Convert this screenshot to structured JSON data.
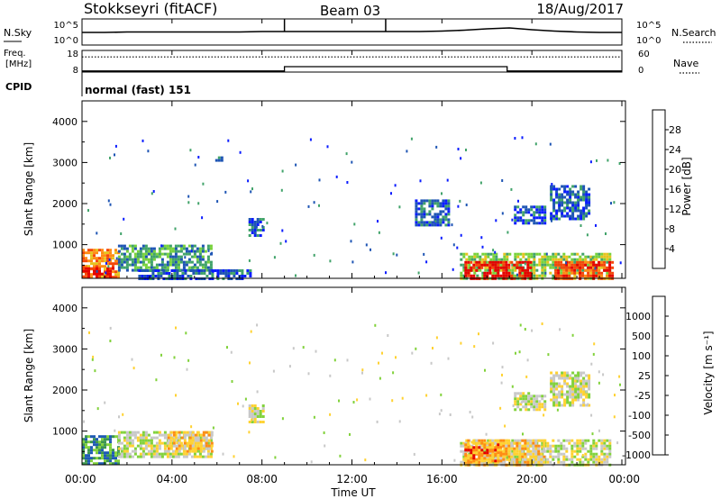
{
  "header": {
    "station": "Stokkseyri (fitACF)",
    "beam": "Beam 03",
    "date": "18/Aug/2017"
  },
  "chart_data": [
    {
      "type": "line",
      "panel": "nsky-nsearch",
      "left_label": "N.Sky",
      "right_label": "N.Search",
      "left_ticks": [
        "10^5",
        "10^0"
      ],
      "right_ticks": [
        "10^5",
        "10^0"
      ],
      "x_hours": [
        0,
        1,
        2,
        3,
        4,
        5,
        6,
        7,
        8,
        9,
        10,
        11,
        12,
        13,
        14,
        15,
        16,
        17,
        18,
        19,
        20,
        21,
        22,
        23,
        24
      ],
      "y_log10": [
        2.4,
        2.4,
        2.5,
        2.5,
        2.5,
        2.5,
        2.5,
        2.5,
        2.6,
        2.6,
        2.6,
        2.6,
        2.6,
        2.6,
        2.6,
        2.6,
        2.7,
        2.9,
        3.2,
        3.4,
        3.0,
        2.7,
        2.5,
        2.4,
        2.4
      ],
      "spikes_hours": [
        9.0,
        13.5
      ],
      "ylim": [
        0,
        5
      ]
    },
    {
      "type": "line",
      "panel": "freq-nave",
      "left_label_line1": "Freq.",
      "left_label_line2": "[MHz]",
      "right_label": "Nave",
      "left_ticks": [
        "18",
        "8"
      ],
      "right_ticks": [
        "60",
        "0"
      ],
      "nave_level": 42,
      "freq_steps": [
        {
          "from": 0,
          "to": 9.0,
          "mhz": 8.5
        },
        {
          "from": 9.0,
          "to": 18.9,
          "mhz": 10.5
        },
        {
          "from": 18.9,
          "to": 24,
          "mhz": 8.5
        }
      ],
      "ylim": [
        8,
        18
      ]
    },
    {
      "type": "heatmap",
      "panel": "power",
      "ylabel": "Slant Range [km]",
      "yticks": [
        "1000",
        "2000",
        "3000",
        "4000"
      ],
      "ylim": [
        180,
        4500
      ],
      "colorbar_label": "Power [dB]",
      "colorbar_ticks": [
        "4",
        "8",
        "12",
        "16",
        "20",
        "24",
        "28"
      ],
      "colors": [
        "#0a1cff",
        "#1e55b4",
        "#41a36a",
        "#78d23c",
        "#e6c31e",
        "#ff8c14",
        "#f5460a",
        "#e60000"
      ],
      "regions": [
        {
          "t0": 0.0,
          "t1": 1.6,
          "r0": 200,
          "r1": 900,
          "level": 5
        },
        {
          "t0": 0.0,
          "t1": 1.4,
          "r0": 200,
          "r1": 450,
          "level": 7
        },
        {
          "t0": 1.6,
          "t1": 5.8,
          "r0": 350,
          "r1": 1000,
          "level": 2
        },
        {
          "t0": 2.5,
          "t1": 7.5,
          "r0": 200,
          "r1": 400,
          "level": 1
        },
        {
          "t0": 7.4,
          "t1": 8.1,
          "r0": 1200,
          "r1": 1650,
          "level": 1
        },
        {
          "t0": 5.8,
          "t1": 6.2,
          "r0": 3050,
          "r1": 3150,
          "level": 1
        },
        {
          "t0": 14.8,
          "t1": 16.3,
          "r0": 1500,
          "r1": 2100,
          "level": 1
        },
        {
          "t0": 16.8,
          "t1": 23.5,
          "r0": 200,
          "r1": 800,
          "level": 3
        },
        {
          "t0": 17.0,
          "t1": 20.0,
          "r0": 200,
          "r1": 600,
          "level": 7
        },
        {
          "t0": 21.0,
          "t1": 23.6,
          "r0": 200,
          "r1": 600,
          "level": 6
        },
        {
          "t0": 19.2,
          "t1": 20.6,
          "r0": 1500,
          "r1": 1950,
          "level": 1
        },
        {
          "t0": 20.8,
          "t1": 22.6,
          "r0": 1600,
          "r1": 2450,
          "level": 1
        }
      ]
    },
    {
      "type": "heatmap",
      "panel": "velocity",
      "ylabel": "Slant Range [km]",
      "yticks": [
        "1000",
        "2000",
        "3000",
        "4000"
      ],
      "ylim": [
        180,
        4500
      ],
      "colorbar_label": "Velocity [m s⁻¹]",
      "colorbar_ticks": [
        "1000",
        "500",
        "100",
        "25",
        "-25",
        "-100",
        "-500",
        "-1000"
      ],
      "colors": [
        "#0a28d2",
        "#1e5ab4",
        "#3c9650",
        "#82d23c",
        "#c8c8c8",
        "#ffd232",
        "#ff8c14",
        "#e60000"
      ],
      "regions": [
        {
          "t0": 0.0,
          "t1": 1.6,
          "r0": 200,
          "r1": 900,
          "level": 2
        },
        {
          "t0": 1.6,
          "t1": 5.8,
          "r0": 350,
          "r1": 1000,
          "level": 4
        },
        {
          "t0": 3.8,
          "t1": 5.8,
          "r0": 500,
          "r1": 1000,
          "level": 5
        },
        {
          "t0": 7.4,
          "t1": 8.1,
          "r0": 1200,
          "r1": 1650,
          "level": 4
        },
        {
          "t0": 16.8,
          "t1": 23.5,
          "r0": 200,
          "r1": 800,
          "level": 4
        },
        {
          "t0": 17.0,
          "t1": 20.5,
          "r0": 200,
          "r1": 800,
          "level": 5
        },
        {
          "t0": 17.0,
          "t1": 18.6,
          "r0": 300,
          "r1": 700,
          "level": 6
        },
        {
          "t0": 19.2,
          "t1": 20.6,
          "r0": 1500,
          "r1": 1950,
          "level": 4
        },
        {
          "t0": 20.8,
          "t1": 22.6,
          "r0": 1600,
          "r1": 2450,
          "level": 4
        }
      ]
    }
  ],
  "cpid": {
    "label": "CPID",
    "value": "normal (fast) 151"
  },
  "xaxis": {
    "ticks": [
      "00:00",
      "04:00",
      "08:00",
      "12:00",
      "16:00",
      "20:00",
      "00:00"
    ],
    "tick_hours": [
      0,
      4,
      8,
      12,
      16,
      20,
      24
    ],
    "label": "Time UT"
  }
}
